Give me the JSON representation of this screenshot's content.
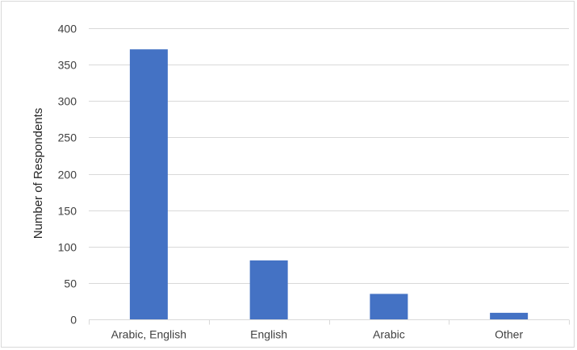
{
  "chart_data": {
    "type": "bar",
    "title": "",
    "xlabel": "",
    "ylabel": "Number of Respondents",
    "categories": [
      "Arabic, English",
      "English",
      "Arabic",
      "Other"
    ],
    "values": [
      371,
      81,
      35,
      9
    ],
    "ylim": [
      0,
      400
    ],
    "yticks": [
      0,
      50,
      100,
      150,
      200,
      250,
      300,
      350,
      400
    ],
    "grid": true,
    "legend": "none",
    "bar_color": "#4472c4",
    "gridline_color": "#d9d9d9"
  }
}
